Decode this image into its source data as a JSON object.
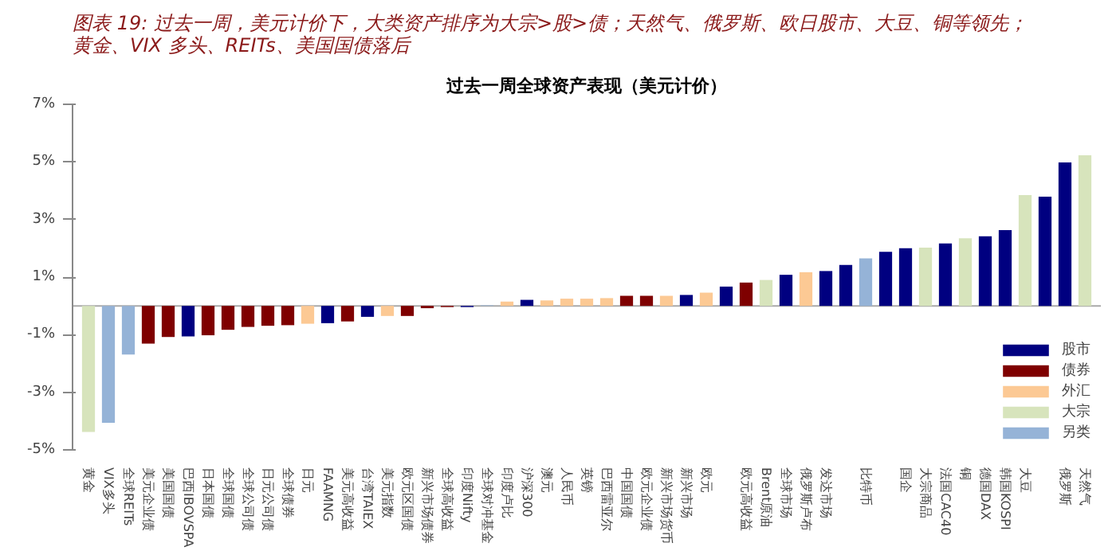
{
  "chart_data": {
    "type": "bar",
    "title": "图表 19: 过去一周，美元计价下，大类资产排序为大宗>股>债；天然气、俄罗斯、欧日股市、大豆、铜等领先；黄金、VIX 多头、REITs、美国国债落后",
    "subtitle": "过去一周全球资产表现（美元计价）",
    "categories": [
      "黄金",
      "VIX多头",
      "全球REITs",
      "美元企业债",
      "美国国债",
      "巴西IBOVSPA",
      "日本国债",
      "全球国债",
      "全球公司债",
      "日元公司债",
      "全球债券",
      "日元",
      "FAAMNG",
      "美元高收益",
      "台湾TAIEX",
      "美元指数",
      "欧元区国债",
      "新兴市场债券",
      "全球高收益",
      "印度Nifty",
      "全球对冲基金",
      "印度卢比",
      "沪深300",
      "澳元",
      "人民币",
      "英镑",
      "巴西雷亚尔",
      "中国国债",
      "欧元企业债",
      "新兴市场货币",
      "新兴市场",
      "欧元",
      null,
      "欧元高收益",
      "Brent原油",
      "全球市场",
      "俄罗斯卢布",
      "发达市场",
      null,
      "比特币",
      null,
      "国企",
      "大宗商品",
      "法国CAC40",
      "铜",
      "德国DAX",
      "韩国KOSPI",
      "大豆",
      null,
      "俄罗斯",
      "天然气"
    ],
    "series": [
      {
        "name": "股市",
        "color": "#000080",
        "values": [
          null,
          null,
          null,
          null,
          null,
          -1.06,
          null,
          null,
          null,
          null,
          null,
          null,
          -0.6,
          null,
          -0.38,
          null,
          null,
          null,
          null,
          -0.04,
          null,
          null,
          0.21,
          null,
          null,
          null,
          null,
          null,
          null,
          null,
          0.38,
          null,
          0.67,
          null,
          null,
          1.08,
          null,
          1.21,
          1.42,
          null,
          1.88,
          2.0,
          null,
          2.17,
          null,
          2.42,
          2.63,
          null,
          3.79,
          4.98,
          null
        ]
      },
      {
        "name": "债券",
        "color": "#7f0000",
        "values": [
          null,
          null,
          null,
          -1.31,
          -1.08,
          null,
          -1.02,
          -0.83,
          -0.73,
          -0.69,
          -0.67,
          null,
          null,
          -0.54,
          null,
          null,
          -0.35,
          -0.08,
          -0.04,
          null,
          null,
          null,
          null,
          null,
          null,
          null,
          null,
          0.35,
          0.35,
          null,
          null,
          null,
          null,
          0.81,
          null,
          null,
          null,
          null,
          null,
          null,
          null,
          null,
          null,
          null,
          null,
          null,
          null,
          null,
          null,
          null,
          null
        ]
      },
      {
        "name": "外汇",
        "color": "#fcc994",
        "values": [
          null,
          null,
          null,
          null,
          null,
          null,
          null,
          null,
          null,
          null,
          null,
          -0.62,
          null,
          null,
          null,
          -0.35,
          null,
          null,
          null,
          null,
          null,
          0.15,
          null,
          0.19,
          0.25,
          0.25,
          0.27,
          null,
          null,
          0.35,
          null,
          0.46,
          null,
          null,
          null,
          null,
          1.17,
          null,
          null,
          null,
          null,
          null,
          null,
          null,
          null,
          null,
          null,
          null,
          null,
          null,
          null
        ]
      },
      {
        "name": "大宗",
        "color": "#d7e4bc",
        "values": [
          -4.38,
          null,
          null,
          null,
          null,
          null,
          null,
          null,
          null,
          null,
          null,
          null,
          null,
          null,
          null,
          null,
          null,
          null,
          null,
          null,
          null,
          null,
          null,
          null,
          null,
          null,
          null,
          null,
          null,
          null,
          null,
          null,
          null,
          null,
          0.9,
          null,
          null,
          null,
          null,
          null,
          null,
          null,
          2.02,
          null,
          2.35,
          null,
          null,
          3.85,
          null,
          null,
          5.23
        ]
      },
      {
        "name": "另类",
        "color": "#95b3d7",
        "values": [
          null,
          -4.06,
          -1.69,
          null,
          null,
          null,
          null,
          null,
          null,
          null,
          null,
          null,
          null,
          null,
          null,
          null,
          null,
          null,
          null,
          null,
          0.02,
          null,
          null,
          null,
          null,
          null,
          null,
          null,
          null,
          null,
          null,
          null,
          null,
          null,
          null,
          null,
          null,
          null,
          null,
          1.65,
          null,
          null,
          null,
          null,
          null,
          null,
          null,
          null,
          null,
          null,
          null
        ]
      }
    ],
    "ylim": [
      -5,
      7
    ],
    "yticks": [
      {
        "value": -5,
        "label": "-5%"
      },
      {
        "value": -3,
        "label": "-3%"
      },
      {
        "value": -1,
        "label": "-1%"
      },
      {
        "value": 1,
        "label": "1%"
      },
      {
        "value": 3,
        "label": "3%"
      },
      {
        "value": 5,
        "label": "5%"
      },
      {
        "value": 7,
        "label": "7%"
      }
    ],
    "grid": false,
    "legend": "bottom right"
  }
}
